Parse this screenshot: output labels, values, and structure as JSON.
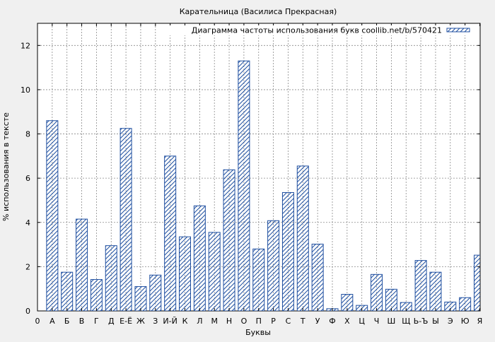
{
  "chart_data": {
    "type": "bar",
    "title": "Карательница (Василиса Прекрасная)",
    "xlabel": "Буквы",
    "ylabel": "% использования в тексте",
    "ylim": [
      0,
      13
    ],
    "yticks": [
      0,
      2,
      4,
      6,
      8,
      10,
      12
    ],
    "grid": true,
    "legend_position": "top-right",
    "series": [
      {
        "name": "Диаграмма частоты использования букв coollib.net/b/570421",
        "color": "#1f4fa0",
        "pattern": "diagonal-hatch"
      }
    ],
    "x_tick_labels": [
      "0",
      "А",
      "Б",
      "В",
      "Г",
      "Д",
      "Е-Ё",
      "Ж",
      "З",
      "И-Й",
      "К",
      "Л",
      "М",
      "Н",
      "О",
      "П",
      "Р",
      "С",
      "Т",
      "У",
      "Ф",
      "Х",
      "Ц",
      "Ч",
      "Ш",
      "Щ",
      "Ь-Ъ",
      "Ы",
      "Э",
      "Ю",
      "Я"
    ],
    "categories": [
      "А",
      "Б",
      "В",
      "Г",
      "Д",
      "Е-Ё",
      "Ж",
      "З",
      "И-Й",
      "К",
      "Л",
      "М",
      "Н",
      "О",
      "П",
      "Р",
      "С",
      "Т",
      "У",
      "Ф",
      "Х",
      "Ц",
      "Ч",
      "Ш",
      "Щ",
      "Ь-Ъ",
      "Ы",
      "Э",
      "Ю",
      "Я"
    ],
    "values": [
      8.6,
      1.75,
      4.15,
      1.42,
      2.95,
      8.25,
      1.1,
      1.62,
      7.0,
      3.35,
      4.75,
      3.55,
      6.38,
      11.3,
      2.8,
      4.08,
      5.35,
      6.55,
      3.02,
      0.1,
      0.75,
      0.25,
      1.65,
      0.98,
      0.38,
      2.28,
      1.75,
      0.4,
      0.6,
      2.52
    ]
  }
}
